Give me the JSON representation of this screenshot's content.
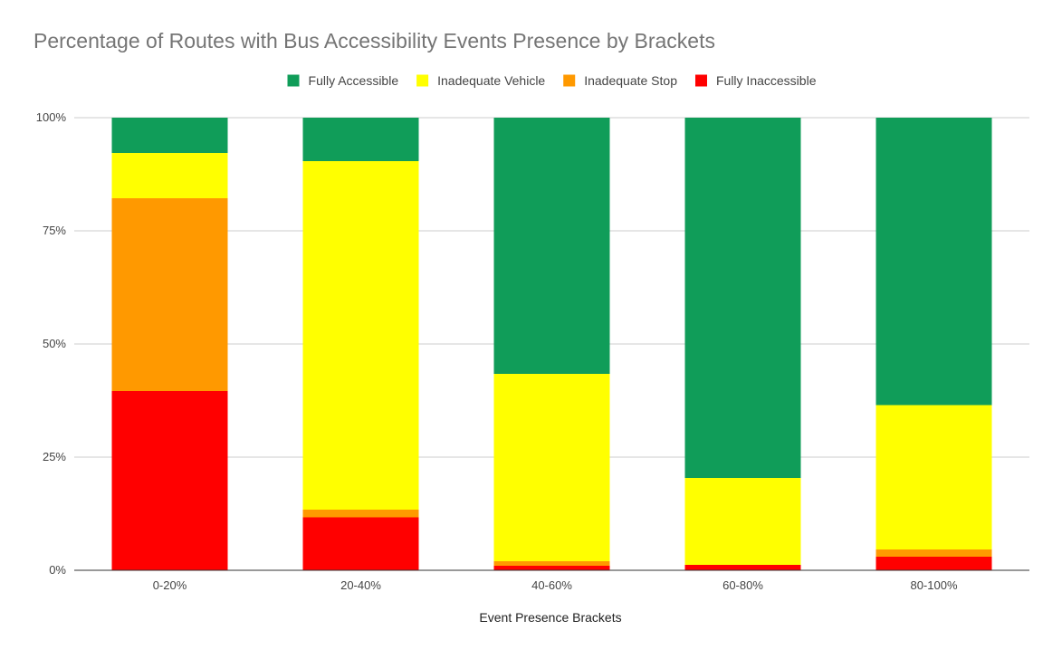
{
  "chart_data": {
    "type": "bar",
    "stacked": true,
    "percent_stacked": true,
    "title": "Percentage of Routes with Bus Accessibility Events Presence by Brackets",
    "xlabel": "Event Presence Brackets",
    "ylabel": "",
    "categories": [
      "0-20%",
      "20-40%",
      "40-60%",
      "60-80%",
      "80-100%"
    ],
    "y_ticks": [
      "0%",
      "25%",
      "50%",
      "75%",
      "100%"
    ],
    "ylim": [
      0,
      100
    ],
    "grid": true,
    "legend_position": "top",
    "series": [
      {
        "name": "Fully Inaccessible",
        "color": "#ff0000",
        "values": [
          39.6,
          11.7,
          1.0,
          1.2,
          3.0
        ]
      },
      {
        "name": "Inadequate Stop",
        "color": "#ff9900",
        "values": [
          42.6,
          1.7,
          1.0,
          0.0,
          1.6
        ]
      },
      {
        "name": "Inadequate Vehicle",
        "color": "#ffff00",
        "values": [
          10.0,
          77.0,
          41.4,
          19.2,
          31.9
        ]
      },
      {
        "name": "Fully Accessible",
        "color": "#109d59",
        "values": [
          7.8,
          9.6,
          56.6,
          79.6,
          63.5
        ]
      }
    ],
    "legend_order": [
      "Fully Accessible",
      "Inadequate Vehicle",
      "Inadequate Stop",
      "Fully Inaccessible"
    ]
  }
}
